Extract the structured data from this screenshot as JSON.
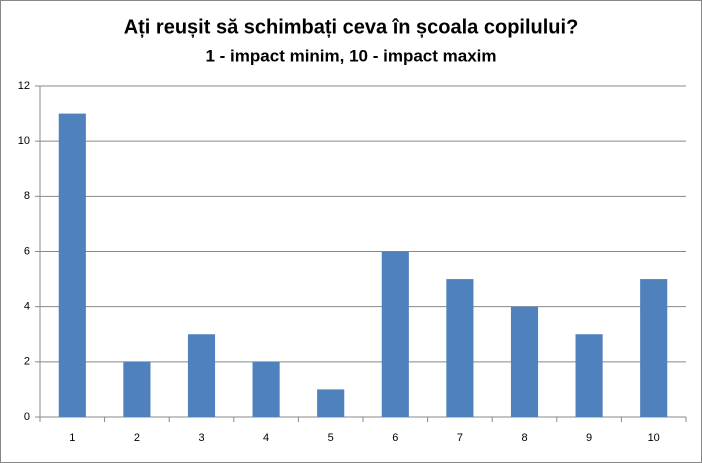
{
  "chart_data": {
    "type": "bar",
    "title": "Ați reușit să schimbați ceva în școala copilului?",
    "subtitle": "1 - impact minim, 10 - impact maxim",
    "categories": [
      "1",
      "2",
      "3",
      "4",
      "5",
      "6",
      "7",
      "8",
      "9",
      "10"
    ],
    "values": [
      11,
      2,
      3,
      2,
      1,
      6,
      5,
      4,
      3,
      5
    ],
    "color": "#4f81bd",
    "ylim": [
      0,
      12
    ],
    "yticks": [
      0,
      2,
      4,
      6,
      8,
      10,
      12
    ],
    "grid": true
  }
}
